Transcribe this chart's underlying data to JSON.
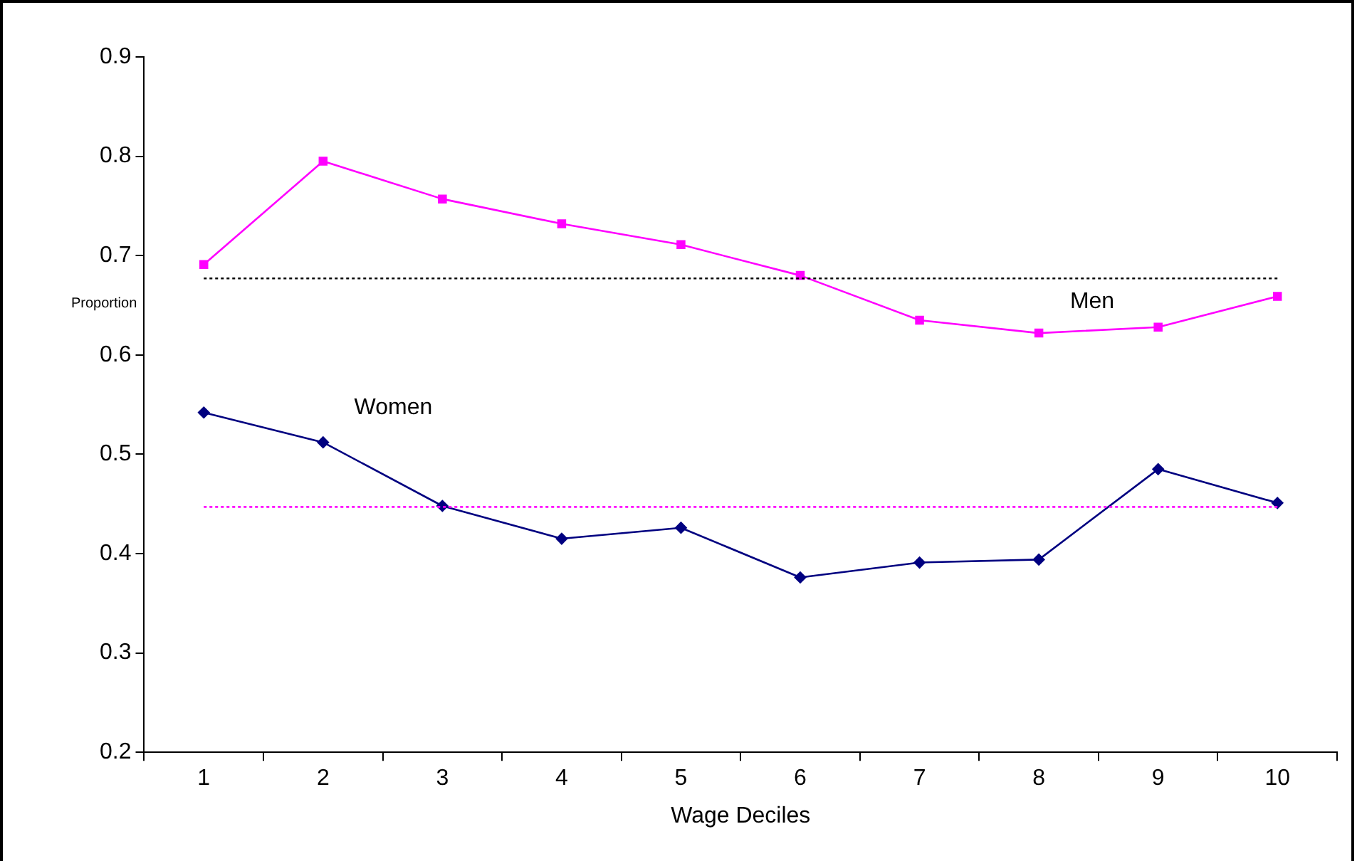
{
  "chart_data": {
    "type": "line",
    "xlabel": "Wage Deciles",
    "ylabel": "Proportion",
    "categories": [
      "1",
      "2",
      "3",
      "4",
      "5",
      "6",
      "7",
      "8",
      "9",
      "10"
    ],
    "series": [
      {
        "name": "Men",
        "color": "#ff00ff",
        "marker": "square",
        "values": [
          0.691,
          0.795,
          0.757,
          0.732,
          0.711,
          0.68,
          0.635,
          0.622,
          0.628,
          0.659
        ]
      },
      {
        "name": "Women",
        "color": "#000080",
        "marker": "diamond",
        "values": [
          0.542,
          0.512,
          0.448,
          0.415,
          0.426,
          0.376,
          0.391,
          0.394,
          0.485,
          0.451
        ]
      }
    ],
    "ref_lines": [
      {
        "axis": "y",
        "value": 0.677,
        "color": "#000000",
        "line_style": "dotted"
      },
      {
        "axis": "y",
        "value": 0.447,
        "color": "#ff00ff",
        "line_style": "dotted"
      }
    ],
    "ylim": [
      0.2,
      0.9
    ],
    "yticks": [
      0.2,
      0.3,
      0.4,
      0.5,
      0.6,
      0.7,
      0.8,
      0.9
    ],
    "grid": false,
    "legend": false,
    "line_style": "solid"
  }
}
